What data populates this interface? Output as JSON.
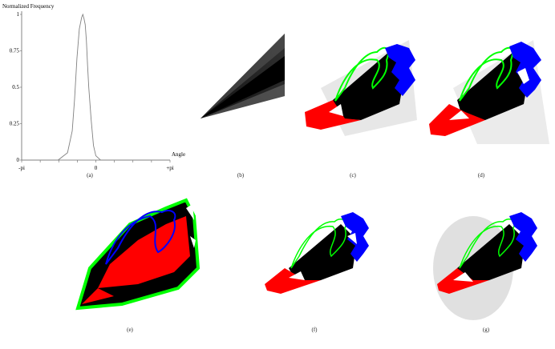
{
  "chart_data": {
    "type": "line",
    "title": "",
    "ylabel": "Normalized Frequency",
    "xlabel": "Angle",
    "xlim": [
      -3.1416,
      3.1416
    ],
    "ylim": [
      0,
      1
    ],
    "x_tick_labels": [
      "-pi",
      "0",
      "+pi"
    ],
    "y_tick_labels": [
      "1",
      "0.75",
      "0.5",
      "0.25",
      "0"
    ],
    "series": [
      {
        "x": [
          -3.14,
          -1.6,
          -1.2,
          -1.0,
          -0.9,
          -0.8,
          -0.7,
          -0.6,
          -0.55,
          -0.5,
          -0.45,
          -0.4,
          -0.35,
          -0.3,
          -0.2,
          -0.1,
          0.0,
          0.2,
          3.14
        ],
        "values": [
          0,
          0,
          0.05,
          0.2,
          0.42,
          0.7,
          0.9,
          0.98,
          1.0,
          0.97,
          0.93,
          0.82,
          0.65,
          0.5,
          0.28,
          0.1,
          0.03,
          0,
          0
        ]
      }
    ]
  },
  "captions": {
    "a": "(a)",
    "b": "(b)",
    "c": "(c)",
    "d": "(d)",
    "e": "(e)",
    "f": "(f)",
    "g": "(g)"
  },
  "colors": {
    "region_red": "#ff0000",
    "region_black": "#000000",
    "contour_green": "#00ff00",
    "contour_blue": "#0000ff",
    "plot_line": "#808080"
  }
}
